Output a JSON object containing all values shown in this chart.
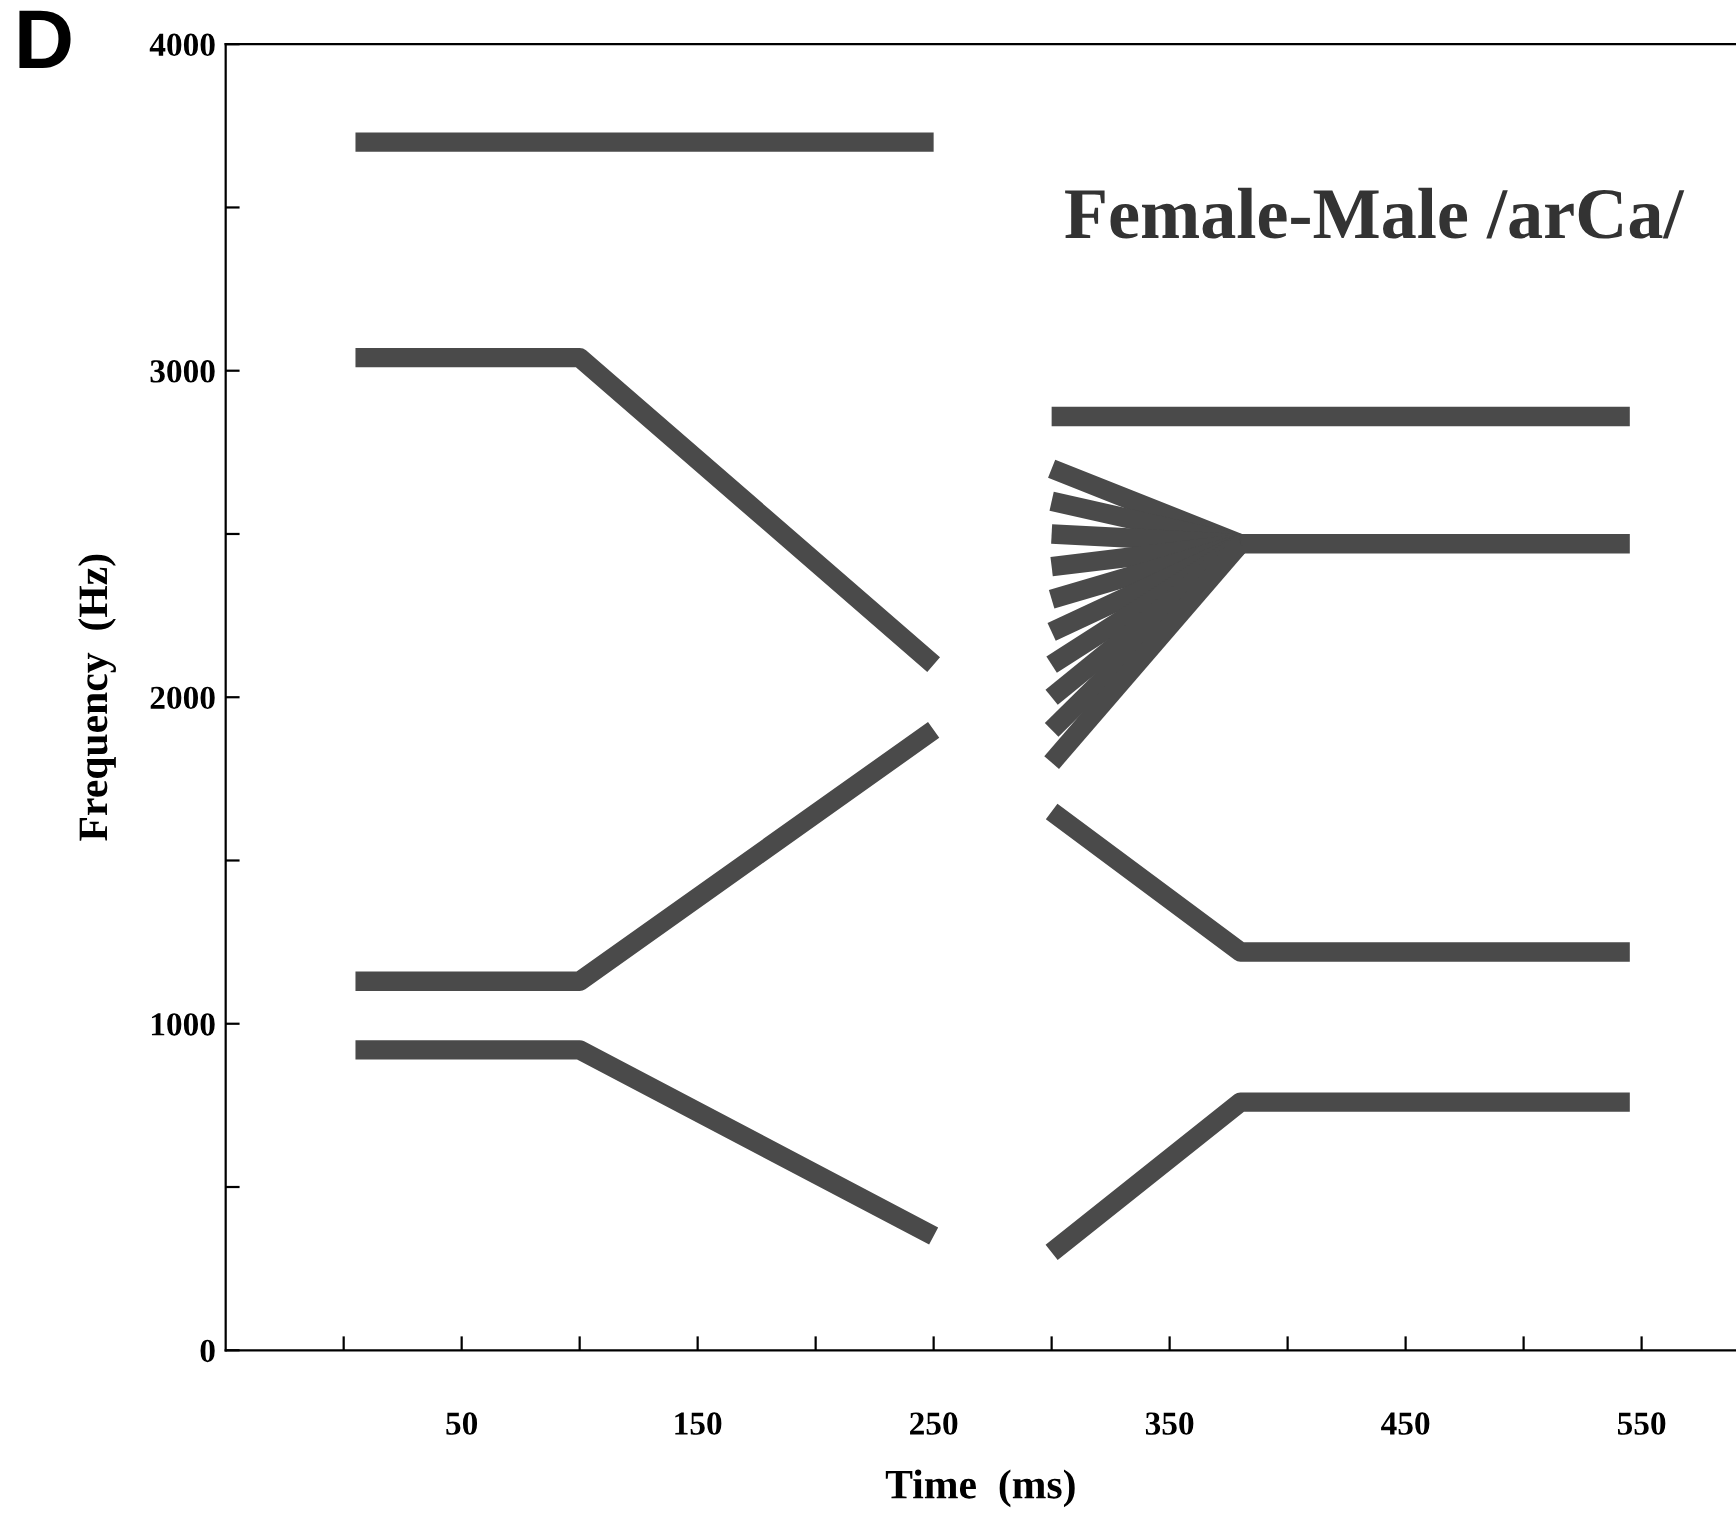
{
  "chart_data": {
    "type": "line",
    "xlabel": "Time  (ms)",
    "ylabel": "Frequency  (Hz)",
    "annotations": [
      "D",
      "Female-Male /arCa/"
    ],
    "xlim": [
      -50,
      590
    ],
    "ylim": [
      0,
      4000
    ],
    "xticks": [
      {
        "value": 0,
        "label": null
      },
      50,
      {
        "value": 100,
        "label": null
      },
      150,
      {
        "value": 200,
        "label": null
      },
      250,
      {
        "value": 300,
        "label": null
      },
      350,
      {
        "value": 400,
        "label": null
      },
      450,
      {
        "value": 500,
        "label": null
      },
      550
    ],
    "yticks": [
      0,
      {
        "value": 500,
        "label": null
      },
      1000,
      {
        "value": 1500,
        "label": null
      },
      2000,
      {
        "value": 2500,
        "label": null
      },
      3000,
      {
        "value": 3500,
        "label": null
      },
      4000
    ],
    "grid": false,
    "legend": false,
    "marker": "none",
    "line_style": "solid",
    "series": [
      {
        "color": "#4a4a4a",
        "x": [
          5,
          250
        ],
        "values": [
          3700,
          3700
        ]
      },
      {
        "color": "#4a4a4a",
        "x": [
          5,
          100,
          250
        ],
        "values": [
          3040,
          3040,
          2100
        ]
      },
      {
        "color": "#4a4a4a",
        "x": [
          5,
          100,
          250
        ],
        "values": [
          1130,
          1130,
          1900
        ]
      },
      {
        "color": "#4a4a4a",
        "x": [
          5,
          100,
          250
        ],
        "values": [
          920,
          920,
          350
        ]
      },
      {
        "color": "#4a4a4a",
        "x": [
          300,
          545
        ],
        "values": [
          2860,
          2860
        ]
      },
      {
        "color": "#4a4a4a",
        "x": [
          300,
          380,
          545
        ],
        "values": [
          2700,
          2470,
          2470
        ]
      },
      {
        "color": "#4a4a4a",
        "x": [
          300,
          380
        ],
        "values": [
          2600,
          2470
        ]
      },
      {
        "color": "#4a4a4a",
        "x": [
          300,
          380
        ],
        "values": [
          2500,
          2470
        ]
      },
      {
        "color": "#4a4a4a",
        "x": [
          300,
          380
        ],
        "values": [
          2400,
          2470
        ]
      },
      {
        "color": "#4a4a4a",
        "x": [
          300,
          380
        ],
        "values": [
          2300,
          2470
        ]
      },
      {
        "color": "#4a4a4a",
        "x": [
          300,
          380
        ],
        "values": [
          2200,
          2470
        ]
      },
      {
        "color": "#4a4a4a",
        "x": [
          300,
          380
        ],
        "values": [
          2100,
          2470
        ]
      },
      {
        "color": "#4a4a4a",
        "x": [
          300,
          380
        ],
        "values": [
          2000,
          2470
        ]
      },
      {
        "color": "#4a4a4a",
        "x": [
          300,
          380
        ],
        "values": [
          1900,
          2470
        ]
      },
      {
        "color": "#4a4a4a",
        "x": [
          300,
          380
        ],
        "values": [
          1800,
          2470
        ]
      },
      {
        "color": "#4a4a4a",
        "x": [
          300,
          380,
          545
        ],
        "values": [
          1650,
          1220,
          1220
        ]
      },
      {
        "color": "#4a4a4a",
        "x": [
          300,
          380,
          545
        ],
        "values": [
          300,
          760,
          760
        ]
      }
    ]
  }
}
